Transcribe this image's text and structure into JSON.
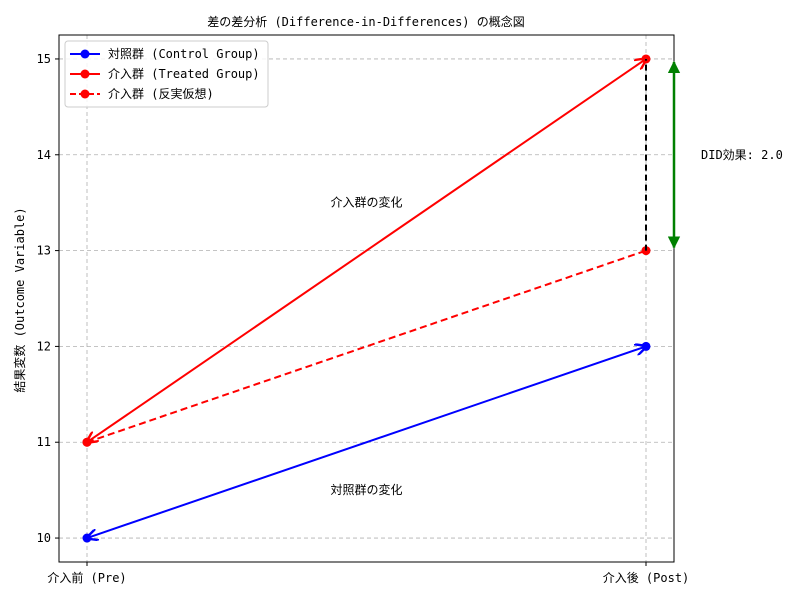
{
  "chart_data": {
    "type": "line",
    "title": "差の差分析 (Difference-in-Differences) の概念図",
    "xlabel": "",
    "ylabel": "結果変数 (Outcome Variable)",
    "categories": [
      "介入前 (Pre)",
      "介入後 (Post)"
    ],
    "yticks": [
      10,
      11,
      12,
      13,
      14,
      15
    ],
    "ylim": [
      9.75,
      15.25
    ],
    "grid": true,
    "legend_position": "top-left",
    "series": [
      {
        "name": "対照群 (Control Group)",
        "values": [
          10,
          12
        ],
        "color": "#0000ff",
        "style": "solid"
      },
      {
        "name": "介入群 (Treated Group)",
        "values": [
          11,
          15
        ],
        "color": "#ff0000",
        "style": "solid"
      },
      {
        "name": "介入群 (反実仮想)",
        "values": [
          11,
          13
        ],
        "color": "#ff0000",
        "style": "dashed"
      }
    ],
    "annotations": {
      "treated_change": {
        "text": "介入群の変化",
        "color": "#ff0000",
        "x": 0.5,
        "y": 13.5
      },
      "control_change": {
        "text": "対照群の変化",
        "color": "#0000ff",
        "x": 0.5,
        "y": 10.5
      },
      "did_effect": {
        "text": "DID効果: 2.0",
        "color": "#008000",
        "y_from": 13,
        "y_to": 15,
        "value": 2.0
      }
    }
  }
}
